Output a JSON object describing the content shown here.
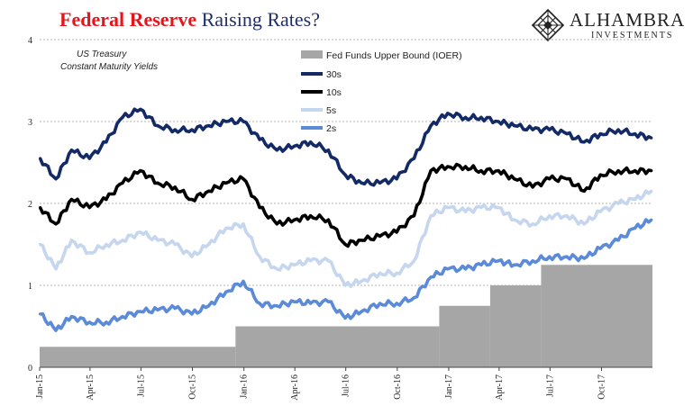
{
  "header": {
    "title_part1": "Federal Reserve",
    "title_part2": "Raising Rates?"
  },
  "logo": {
    "name": "ALHAMBRA",
    "sub": "INVESTMENTS",
    "icon": "diamond-lattice-icon"
  },
  "chart_data": {
    "type": "line",
    "annotation": [
      "US Treasury",
      "Constant Maturity Yields"
    ],
    "ylim": [
      0,
      4
    ],
    "yticks": [
      0,
      1,
      2,
      3,
      4
    ],
    "grid": true,
    "legend_position": "top-center",
    "xlim": [
      "2015-01-01",
      "2017-12-31"
    ],
    "xticks": [
      {
        "date": "2015-01-01",
        "label": "Jan-15"
      },
      {
        "date": "2015-04-01",
        "label": "Apr-15"
      },
      {
        "date": "2015-07-01",
        "label": "Jul-15"
      },
      {
        "date": "2015-10-01",
        "label": "Oct-15"
      },
      {
        "date": "2016-01-01",
        "label": "Jan-16"
      },
      {
        "date": "2016-04-01",
        "label": "Apr-16"
      },
      {
        "date": "2016-07-01",
        "label": "Jul-16"
      },
      {
        "date": "2016-10-01",
        "label": "Oct-16"
      },
      {
        "date": "2017-01-01",
        "label": "Jan-17"
      },
      {
        "date": "2017-04-01",
        "label": "Apr-17"
      },
      {
        "date": "2017-07-01",
        "label": "Jul-17"
      },
      {
        "date": "2017-10-01",
        "label": "Oct-17"
      }
    ],
    "x": [
      "2015-01-02",
      "2015-01-30",
      "2015-02-27",
      "2015-03-31",
      "2015-04-30",
      "2015-05-29",
      "2015-06-30",
      "2015-07-31",
      "2015-08-31",
      "2015-09-30",
      "2015-10-30",
      "2015-11-30",
      "2015-12-31",
      "2016-01-29",
      "2016-02-29",
      "2016-03-31",
      "2016-04-29",
      "2016-05-31",
      "2016-06-30",
      "2016-07-29",
      "2016-08-31",
      "2016-09-30",
      "2016-10-31",
      "2016-11-30",
      "2016-12-30",
      "2017-01-31",
      "2017-02-28",
      "2017-03-31",
      "2017-04-28",
      "2017-05-31",
      "2017-06-30",
      "2017-07-31",
      "2017-08-31",
      "2017-09-29",
      "2017-10-31",
      "2017-11-30",
      "2017-12-29"
    ],
    "fed_funds": {
      "name": "Fed Funds Upper Bound (IOER)",
      "color": "#a6a6a6",
      "steps": [
        {
          "from": "2015-01-01",
          "value": 0.25
        },
        {
          "from": "2015-12-17",
          "value": 0.5
        },
        {
          "from": "2016-12-15",
          "value": 0.75
        },
        {
          "from": "2017-03-16",
          "value": 1.0
        },
        {
          "from": "2017-06-15",
          "value": 1.25
        }
      ]
    },
    "series": [
      {
        "name": "30s",
        "color": "#132a66",
        "values": [
          2.55,
          2.3,
          2.65,
          2.55,
          2.75,
          3.05,
          3.15,
          2.95,
          2.9,
          2.9,
          2.95,
          3.0,
          3.0,
          2.78,
          2.65,
          2.7,
          2.75,
          2.65,
          2.35,
          2.25,
          2.25,
          2.3,
          2.55,
          2.95,
          3.1,
          3.05,
          3.05,
          3.0,
          2.95,
          2.9,
          2.9,
          2.85,
          2.75,
          2.85,
          2.9,
          2.85,
          2.8
        ]
      },
      {
        "name": "10s",
        "color": "#000000",
        "values": [
          1.95,
          1.75,
          2.05,
          1.95,
          2.05,
          2.25,
          2.4,
          2.25,
          2.2,
          2.05,
          2.15,
          2.25,
          2.3,
          1.95,
          1.75,
          1.8,
          1.85,
          1.8,
          1.5,
          1.55,
          1.6,
          1.65,
          1.85,
          2.4,
          2.45,
          2.45,
          2.4,
          2.4,
          2.3,
          2.2,
          2.3,
          2.3,
          2.15,
          2.35,
          2.4,
          2.4,
          2.4
        ]
      },
      {
        "name": "5s",
        "color": "#c5d6ee",
        "values": [
          1.5,
          1.2,
          1.55,
          1.4,
          1.5,
          1.55,
          1.65,
          1.55,
          1.5,
          1.35,
          1.5,
          1.7,
          1.75,
          1.35,
          1.2,
          1.25,
          1.3,
          1.3,
          1.0,
          1.05,
          1.15,
          1.15,
          1.3,
          1.85,
          1.95,
          1.9,
          1.95,
          1.95,
          1.8,
          1.75,
          1.85,
          1.85,
          1.75,
          1.9,
          2.0,
          2.05,
          2.15
        ]
      },
      {
        "name": "2s",
        "color": "#5b8bd8",
        "values": [
          0.65,
          0.45,
          0.62,
          0.55,
          0.55,
          0.62,
          0.68,
          0.7,
          0.72,
          0.65,
          0.75,
          0.92,
          1.05,
          0.78,
          0.75,
          0.8,
          0.78,
          0.8,
          0.6,
          0.68,
          0.78,
          0.78,
          0.85,
          1.1,
          1.2,
          1.2,
          1.25,
          1.3,
          1.25,
          1.3,
          1.35,
          1.35,
          1.33,
          1.45,
          1.55,
          1.7,
          1.8
        ]
      }
    ]
  }
}
